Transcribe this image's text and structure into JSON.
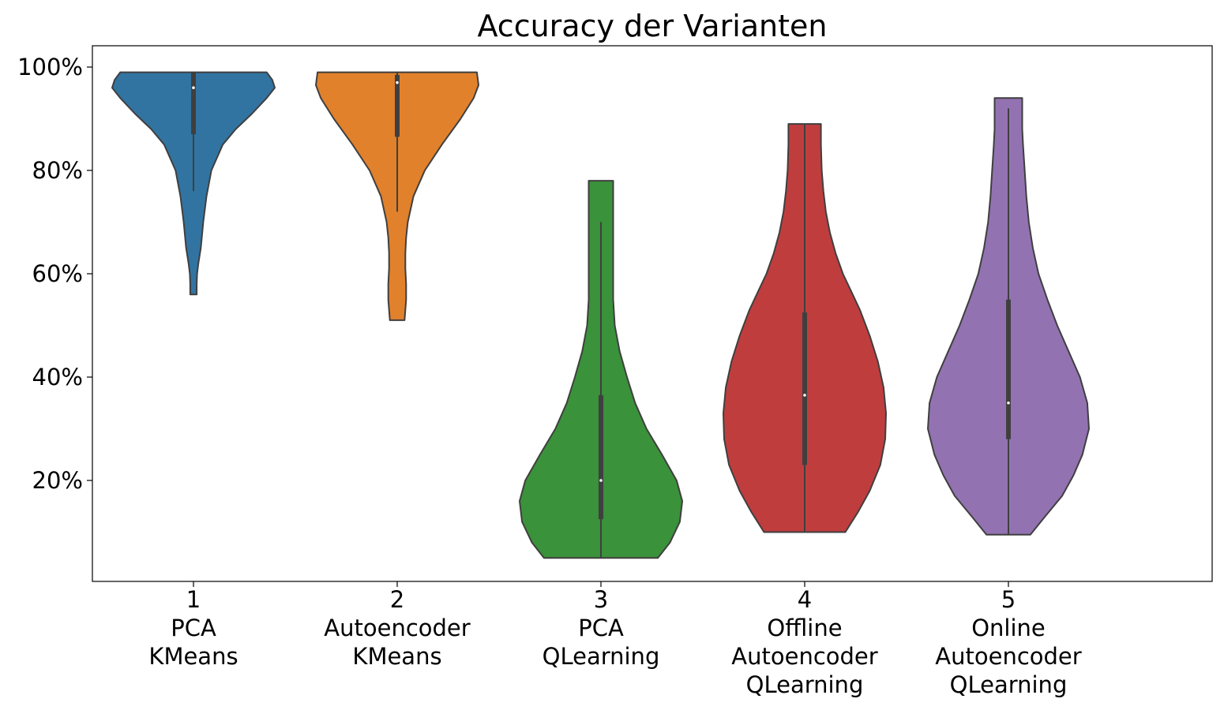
{
  "chart_data": {
    "type": "violin",
    "title": "Accuracy der Varianten",
    "xlabel": "",
    "ylabel": "",
    "ylim": [
      0,
      104
    ],
    "y_ticks": [
      20,
      40,
      60,
      80,
      100
    ],
    "y_tick_labels": [
      "20%",
      "40%",
      "60%",
      "80%",
      "100%"
    ],
    "grid": false,
    "legend": "none",
    "categories": [
      {
        "lines": [
          "1",
          "PCA",
          "KMeans"
        ]
      },
      {
        "lines": [
          "2",
          "Autoencoder",
          "KMeans"
        ]
      },
      {
        "lines": [
          "3",
          "PCA",
          "QLearning"
        ]
      },
      {
        "lines": [
          "4",
          "Offline",
          "Autoencoder",
          "QLearning"
        ]
      },
      {
        "lines": [
          "5",
          "Online",
          "Autoencoder",
          "QLearning"
        ]
      }
    ],
    "series": [
      {
        "color": "#3274a1",
        "min": 56,
        "max": 99,
        "q1": 87,
        "median": 96,
        "q3": 99,
        "whisker_low": 76,
        "whisker_high": 99,
        "density": [
          [
            56,
            0.04
          ],
          [
            58,
            0.04
          ],
          [
            60,
            0.045
          ],
          [
            62,
            0.06
          ],
          [
            65,
            0.09
          ],
          [
            70,
            0.12
          ],
          [
            75,
            0.16
          ],
          [
            80,
            0.22
          ],
          [
            85,
            0.36
          ],
          [
            88,
            0.52
          ],
          [
            91,
            0.72
          ],
          [
            94,
            0.9
          ],
          [
            96,
            1.0
          ],
          [
            97.5,
            0.97
          ],
          [
            99,
            0.9
          ]
        ]
      },
      {
        "color": "#e1812c",
        "min": 51,
        "max": 99,
        "q1": 86.5,
        "median": 97,
        "q3": 98.5,
        "whisker_low": 72,
        "whisker_high": 99,
        "density": [
          [
            51,
            0.09
          ],
          [
            53,
            0.1
          ],
          [
            55,
            0.11
          ],
          [
            58,
            0.11
          ],
          [
            61,
            0.1
          ],
          [
            64,
            0.1
          ],
          [
            67,
            0.11
          ],
          [
            70,
            0.13
          ],
          [
            75,
            0.2
          ],
          [
            80,
            0.34
          ],
          [
            85,
            0.55
          ],
          [
            90,
            0.78
          ],
          [
            94,
            0.94
          ],
          [
            96.5,
            1.0
          ],
          [
            99,
            0.98
          ]
        ]
      },
      {
        "color": "#3a923a",
        "min": 5,
        "max": 78,
        "q1": 12.5,
        "median": 20,
        "q3": 36.5,
        "whisker_low": 5,
        "whisker_high": 70,
        "density": [
          [
            5,
            0.7
          ],
          [
            8,
            0.85
          ],
          [
            12,
            0.97
          ],
          [
            16,
            1.0
          ],
          [
            20,
            0.93
          ],
          [
            25,
            0.75
          ],
          [
            30,
            0.56
          ],
          [
            35,
            0.42
          ],
          [
            40,
            0.32
          ],
          [
            45,
            0.23
          ],
          [
            50,
            0.17
          ],
          [
            55,
            0.15
          ],
          [
            60,
            0.15
          ],
          [
            65,
            0.15
          ],
          [
            70,
            0.15
          ],
          [
            74,
            0.15
          ],
          [
            78,
            0.15
          ]
        ]
      },
      {
        "color": "#c03d3e",
        "min": 10,
        "max": 89,
        "q1": 23,
        "median": 36.5,
        "q3": 52.5,
        "whisker_low": 10,
        "whisker_high": 89,
        "density": [
          [
            10,
            0.5
          ],
          [
            14,
            0.66
          ],
          [
            18,
            0.8
          ],
          [
            23,
            0.93
          ],
          [
            28,
            0.99
          ],
          [
            33,
            1.0
          ],
          [
            38,
            0.97
          ],
          [
            43,
            0.9
          ],
          [
            48,
            0.8
          ],
          [
            53,
            0.68
          ],
          [
            57,
            0.56
          ],
          [
            60,
            0.47
          ],
          [
            64,
            0.38
          ],
          [
            68,
            0.31
          ],
          [
            72,
            0.26
          ],
          [
            76,
            0.23
          ],
          [
            80,
            0.21
          ],
          [
            85,
            0.2
          ],
          [
            89,
            0.2
          ]
        ]
      },
      {
        "color": "#9372b2",
        "min": 9.5,
        "max": 94,
        "q1": 28,
        "median": 35,
        "q3": 55,
        "whisker_low": 9.5,
        "whisker_high": 92,
        "density": [
          [
            9.5,
            0.27
          ],
          [
            13,
            0.45
          ],
          [
            17,
            0.66
          ],
          [
            21,
            0.8
          ],
          [
            25,
            0.91
          ],
          [
            30,
            0.99
          ],
          [
            35,
            0.97
          ],
          [
            40,
            0.88
          ],
          [
            45,
            0.74
          ],
          [
            50,
            0.6
          ],
          [
            55,
            0.48
          ],
          [
            60,
            0.37
          ],
          [
            65,
            0.3
          ],
          [
            70,
            0.25
          ],
          [
            75,
            0.22
          ],
          [
            80,
            0.2
          ],
          [
            85,
            0.18
          ],
          [
            88,
            0.17
          ],
          [
            91,
            0.17
          ],
          [
            94,
            0.17
          ]
        ]
      }
    ]
  }
}
